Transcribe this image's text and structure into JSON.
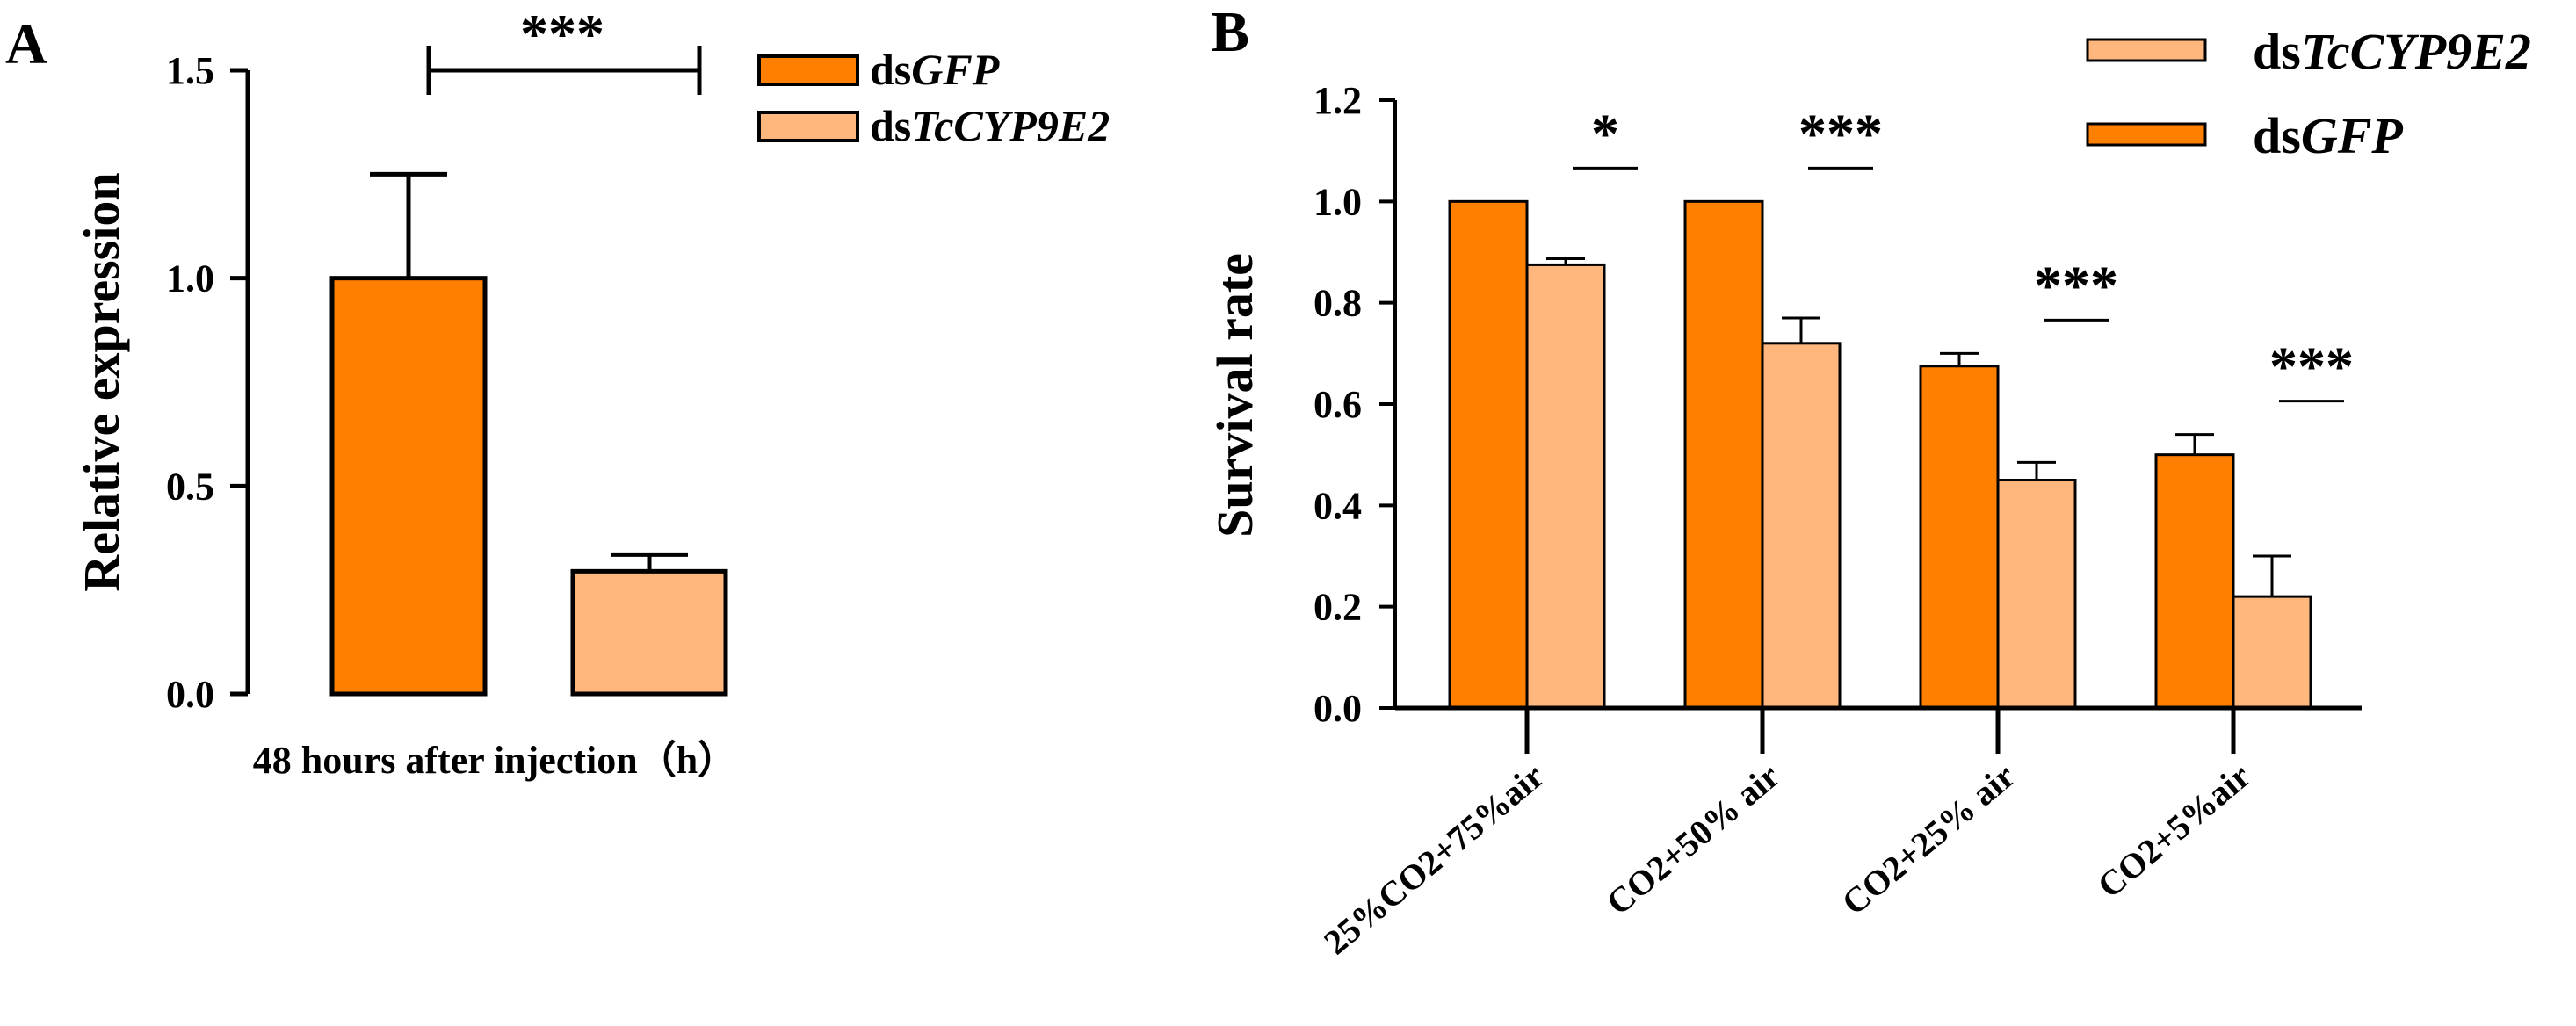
{
  "chart_data": [
    {
      "panel": "A",
      "type": "bar",
      "title": "",
      "xlabel": "48 hours after injection（h）",
      "ylabel": "Relative expression",
      "ylim": [
        0,
        1.5
      ],
      "yticks": [
        "0.0",
        "0.5",
        "1.0",
        "1.5"
      ],
      "yticks_values": [
        0,
        0.5,
        1.0,
        1.5
      ],
      "series": [
        {
          "name_prefix": "ds",
          "name_italic": "GFP",
          "color": "#FF8000",
          "value": 1.0,
          "error": 0.25
        },
        {
          "name_prefix": "ds",
          "name_italic": "TcCYP9E2",
          "color": "#FFB77D",
          "value": 0.295,
          "error": 0.04
        }
      ],
      "significance": [
        {
          "label": "***",
          "between": [
            0,
            1
          ]
        }
      ],
      "legend_position": "top-right"
    },
    {
      "panel": "B",
      "type": "bar",
      "title": "",
      "xlabel": "",
      "ylabel": "Survival rate",
      "ylim": [
        0,
        1.2
      ],
      "yticks": [
        "0.0",
        "0.2",
        "0.4",
        "0.6",
        "0.8",
        "1.0",
        "1.2"
      ],
      "yticks_values": [
        0,
        0.2,
        0.4,
        0.6,
        0.8,
        1.0,
        1.2
      ],
      "categories": [
        "25%CO2+75%air",
        "CO2+50% air",
        "CO2+25% air",
        "CO2+5%air"
      ],
      "series": [
        {
          "name_prefix": "ds",
          "name_italic": "GFP",
          "color": "#FF8000",
          "values": [
            1.0,
            1.0,
            0.675,
            0.5
          ],
          "errors": [
            0,
            0,
            0.025,
            0.04
          ]
        },
        {
          "name_prefix": "ds",
          "name_italic": "TcCYP9E2",
          "color": "#FFB77D",
          "values": [
            0.875,
            0.72,
            0.45,
            0.22
          ],
          "errors": [
            0.012,
            0.05,
            0.035,
            0.08
          ]
        }
      ],
      "significance": [
        "*",
        "***",
        "***",
        "***"
      ],
      "legend_order": [
        1,
        0
      ],
      "legend_position": "top-right"
    }
  ]
}
